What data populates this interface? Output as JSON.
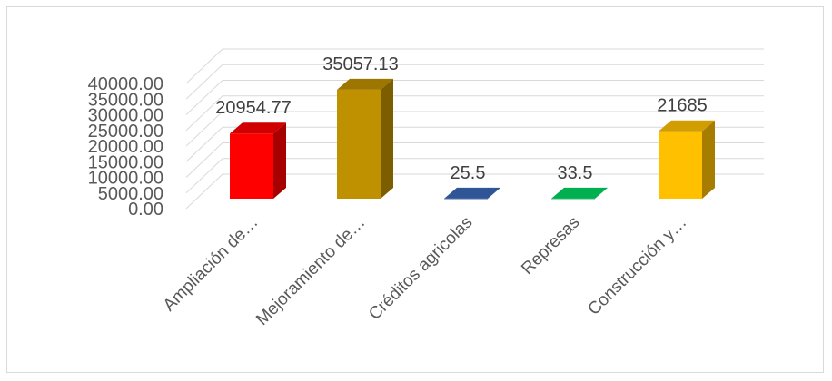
{
  "chart_data": {
    "type": "bar",
    "title": "",
    "xlabel": "",
    "ylabel": "",
    "ylim": [
      0,
      40000
    ],
    "yticks": [
      "0.00",
      "5000.00",
      "10000.00",
      "15000.00",
      "20000.00",
      "25000.00",
      "30000.00",
      "35000.00",
      "40000.00"
    ],
    "grid": true,
    "legend": "none",
    "categories": [
      "Ampliación de…",
      "Mejoramiento de…",
      "Créditos agricolas",
      "Represas",
      "Construcción y…"
    ],
    "values": [
      20954.77,
      35057.13,
      25.5,
      33.5,
      21685
    ],
    "data_labels": [
      "20954.77",
      "35057.13",
      "25.5",
      "33.5",
      "21685"
    ],
    "colors": [
      "#ff0000",
      "#bf9000",
      "#2f5597",
      "#00b050",
      "#ffc000"
    ]
  }
}
